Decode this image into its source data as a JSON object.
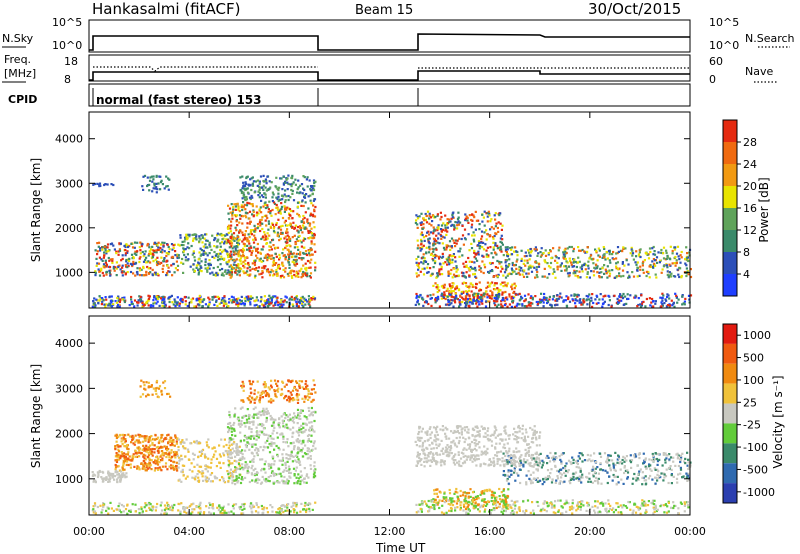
{
  "header": {
    "station": "Hankasalmi (fitACF)",
    "beam": "Beam 15",
    "date": "30/Oct/2015"
  },
  "panels": {
    "nsky_label": "N.Sky",
    "nsky_ticks": [
      "10^5",
      "10^0"
    ],
    "nsearch_label": "N.Search",
    "nsearch_ticks": [
      "10^5",
      "10^0"
    ],
    "freq_label_1": "Freq.",
    "freq_label_2": "[MHz]",
    "freq_ticks": [
      "18",
      "8"
    ],
    "nave_label": "Nave",
    "nave_ticks": [
      "60",
      "0"
    ],
    "cpid_label": "CPID",
    "cpid_text": "normal (fast stereo) 153"
  },
  "chart_data": [
    {
      "type": "heatmap",
      "title": "",
      "xlabel": "Time UT",
      "ylabel": "Slant Range [km]",
      "x_ticks": [
        "00:00",
        "04:00",
        "08:00",
        "12:00",
        "16:00",
        "20:00",
        "00:00"
      ],
      "y_ticks": [
        1000,
        2000,
        3000,
        4000
      ],
      "ylim": [
        200,
        4600
      ],
      "colorbar": {
        "label": "Power [dB]",
        "ticks": [
          4,
          8,
          12,
          16,
          20,
          24,
          28
        ],
        "colors": [
          "#1f3fff",
          "#2c4fb8",
          "#3a8a6a",
          "#5fa35a",
          "#e8e400",
          "#f29a12",
          "#f06a10",
          "#e52a10"
        ]
      },
      "data_gaps_hours": [
        [
          9.0,
          13.0
        ]
      ]
    },
    {
      "type": "heatmap",
      "title": "",
      "xlabel": "Time UT",
      "ylabel": "Slant Range [km]",
      "x_ticks": [
        "00:00",
        "04:00",
        "08:00",
        "12:00",
        "16:00",
        "20:00",
        "00:00"
      ],
      "y_ticks": [
        1000,
        2000,
        3000,
        4000
      ],
      "ylim": [
        200,
        4600
      ],
      "colorbar": {
        "label": "Velocity [m s⁻¹]",
        "ticks": [
          "1000",
          "500",
          "100",
          "25",
          "-25",
          "-100",
          "-500",
          "-1000"
        ],
        "colors": [
          "#2b3fb0",
          "#2f6ab0",
          "#3a8a6a",
          "#62cc3a",
          "#c8c8c0",
          "#f0c23a",
          "#f08a10",
          "#f05a10",
          "#e21a10"
        ]
      },
      "data_gaps_hours": [
        [
          9.0,
          13.0
        ]
      ]
    }
  ]
}
